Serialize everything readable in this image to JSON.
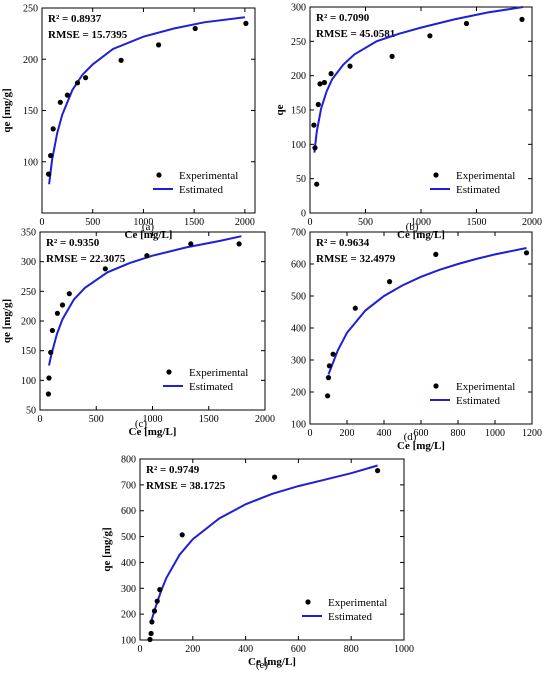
{
  "legend": {
    "experimental": "Experimental",
    "estimated": "Estimated"
  },
  "colors": {
    "curve": "#1f1fd6",
    "points": "#000000"
  },
  "chart_data": [
    {
      "type": "scatter",
      "panel": "(a)",
      "stats": [
        "R² = 0.8937",
        "RMSE = 15.7395"
      ],
      "xlabel": "Ce [mg/L]",
      "ylabel": "qe [mg/g]",
      "xlim": [
        0,
        2100
      ],
      "ylim": [
        50,
        250
      ],
      "xticks": [
        0,
        500,
        1000,
        1500,
        2000
      ],
      "yticks": [
        100,
        150,
        200,
        250
      ],
      "legend_position": "bottom-right",
      "series": [
        {
          "name": "Experimental",
          "x": [
            65,
            85,
            110,
            180,
            250,
            350,
            430,
            780,
            1150,
            1510,
            2010
          ],
          "y": [
            88,
            106,
            132,
            158,
            165,
            177,
            182,
            199,
            214,
            230,
            235
          ]
        },
        {
          "name": "Estimated",
          "x": [
            70,
            100,
            150,
            200,
            300,
            400,
            500,
            700,
            1000,
            1300,
            1600,
            2000
          ],
          "y": [
            78,
            102,
            128,
            146,
            170,
            185,
            195,
            210,
            222,
            230,
            236,
            241
          ]
        }
      ]
    },
    {
      "type": "scatter",
      "panel": "(b)",
      "stats": [
        "R² = 0.7090",
        "RMSE = 45.0581"
      ],
      "xlabel": "Ce [mg/L]",
      "ylabel": "qe",
      "xlim": [
        0,
        2000
      ],
      "ylim": [
        0,
        300
      ],
      "xticks": [
        0,
        500,
        1000,
        1500,
        2000
      ],
      "yticks": [
        0,
        50,
        100,
        150,
        200,
        250,
        300
      ],
      "legend_position": "bottom-right",
      "series": [
        {
          "name": "Experimental",
          "x": [
            35,
            45,
            60,
            75,
            90,
            130,
            190,
            360,
            740,
            1080,
            1410,
            1910
          ],
          "y": [
            128,
            95,
            42,
            158,
            188,
            190,
            203,
            214,
            228,
            258,
            276,
            282
          ]
        },
        {
          "name": "Estimated",
          "x": [
            40,
            60,
            100,
            150,
            200,
            300,
            400,
            600,
            800,
            1000,
            1300,
            1600,
            1920
          ],
          "y": [
            88,
            118,
            152,
            177,
            195,
            216,
            231,
            250,
            261,
            270,
            282,
            292,
            300
          ]
        }
      ]
    },
    {
      "type": "scatter",
      "panel": "(c)",
      "stats": [
        "R² = 0.9350",
        "RMSE = 22.3075"
      ],
      "xlabel": "Ce [mg/L]",
      "ylabel": "qe [mg/g]",
      "xlim": [
        0,
        2000
      ],
      "ylim": [
        50,
        350
      ],
      "xticks": [
        0,
        500,
        1000,
        1500,
        2000
      ],
      "yticks": [
        50,
        100,
        150,
        200,
        250,
        300,
        350
      ],
      "legend_position": "bottom-right",
      "series": [
        {
          "name": "Experimental",
          "x": [
            75,
            80,
            95,
            110,
            155,
            200,
            260,
            580,
            950,
            1340,
            1770
          ],
          "y": [
            77,
            104,
            147,
            184,
            213,
            227,
            246,
            288,
            310,
            330,
            330
          ]
        },
        {
          "name": "Estimated",
          "x": [
            80,
            100,
            150,
            200,
            300,
            400,
            600,
            800,
            1000,
            1300,
            1600,
            1790
          ],
          "y": [
            125,
            143,
            178,
            203,
            236,
            256,
            282,
            298,
            310,
            324,
            335,
            343
          ]
        }
      ]
    },
    {
      "type": "scatter",
      "panel": "(d)",
      "stats": [
        "R² = 0.9634",
        "RMSE = 32.4979"
      ],
      "xlabel": "Ce [mg/L]",
      "ylabel": "",
      "xlim": [
        0,
        1200
      ],
      "ylim": [
        100,
        700
      ],
      "xticks": [
        0,
        200,
        400,
        600,
        800,
        1000,
        1200
      ],
      "yticks": [
        100,
        200,
        300,
        400,
        500,
        600,
        700
      ],
      "legend_position": "bottom-right",
      "series": [
        {
          "name": "Experimental",
          "x": [
            95,
            100,
            105,
            125,
            245,
            430,
            680,
            1170
          ],
          "y": [
            188,
            245,
            282,
            318,
            462,
            545,
            630,
            635
          ]
        },
        {
          "name": "Estimated",
          "x": [
            100,
            150,
            200,
            300,
            400,
            500,
            600,
            700,
            800,
            900,
            1000,
            1170
          ],
          "y": [
            255,
            330,
            385,
            455,
            500,
            533,
            560,
            582,
            600,
            616,
            630,
            650
          ]
        }
      ]
    },
    {
      "type": "scatter",
      "panel": "(e)",
      "stats": [
        "R² = 0.9749",
        "RMSE = 38.1725"
      ],
      "xlabel": "Ce [mg/L]",
      "ylabel": "qe [mg/g]",
      "xlim": [
        0,
        1000
      ],
      "ylim": [
        100,
        800
      ],
      "xticks": [
        0,
        200,
        400,
        600,
        800,
        1000
      ],
      "yticks": [
        100,
        200,
        300,
        400,
        500,
        600,
        700,
        800
      ],
      "legend_position": "bottom-right",
      "series": [
        {
          "name": "Experimental",
          "x": [
            38,
            42,
            45,
            55,
            65,
            75,
            160,
            510,
            900
          ],
          "y": [
            102,
            125,
            170,
            212,
            250,
            295,
            507,
            730,
            755
          ]
        },
        {
          "name": "Estimated",
          "x": [
            40,
            60,
            80,
            100,
            150,
            200,
            300,
            400,
            500,
            600,
            700,
            800,
            900
          ],
          "y": [
            165,
            230,
            290,
            340,
            430,
            490,
            570,
            625,
            665,
            695,
            720,
            745,
            775
          ]
        }
      ]
    }
  ]
}
